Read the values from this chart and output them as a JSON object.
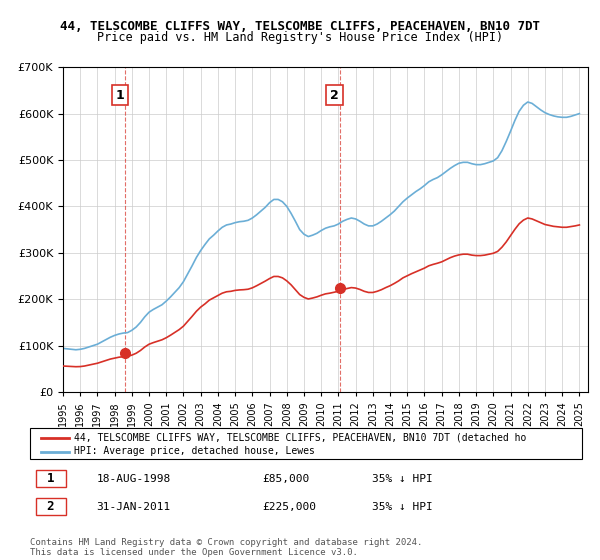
{
  "title_line1": "44, TELSCOMBE CLIFFS WAY, TELSCOMBE CLIFFS, PEACEHAVEN, BN10 7DT",
  "title_line2": "Price paid vs. HM Land Registry's House Price Index (HPI)",
  "ylabel": "",
  "xlabel": "",
  "ylim": [
    0,
    700000
  ],
  "yticks": [
    0,
    100000,
    200000,
    300000,
    400000,
    500000,
    600000,
    700000
  ],
  "ytick_labels": [
    "£0",
    "£100K",
    "£200K",
    "£300K",
    "£400K",
    "£500K",
    "£600K",
    "£700K"
  ],
  "sale1_date": 1998.62,
  "sale1_price": 85000,
  "sale1_label": "1",
  "sale2_date": 2011.08,
  "sale2_price": 225000,
  "sale2_label": "2",
  "hpi_color": "#6baed6",
  "price_color": "#d73027",
  "background_color": "#ffffff",
  "grid_color": "#cccccc",
  "legend_label1": "44, TELSCOMBE CLIFFS WAY, TELSCOMBE CLIFFS, PEACEHAVEN, BN10 7DT (detached ho",
  "legend_label2": "HPI: Average price, detached house, Lewes",
  "table_row1": [
    "1",
    "18-AUG-1998",
    "£85,000",
    "35% ↓ HPI"
  ],
  "table_row2": [
    "2",
    "31-JAN-2011",
    "£225,000",
    "35% ↓ HPI"
  ],
  "footnote": "Contains HM Land Registry data © Crown copyright and database right 2024.\nThis data is licensed under the Open Government Licence v3.0.",
  "hpi_data_x": [
    1995.0,
    1995.25,
    1995.5,
    1995.75,
    1996.0,
    1996.25,
    1996.5,
    1996.75,
    1997.0,
    1997.25,
    1997.5,
    1997.75,
    1998.0,
    1998.25,
    1998.5,
    1998.75,
    1999.0,
    1999.25,
    1999.5,
    1999.75,
    2000.0,
    2000.25,
    2000.5,
    2000.75,
    2001.0,
    2001.25,
    2001.5,
    2001.75,
    2002.0,
    2002.25,
    2002.5,
    2002.75,
    2003.0,
    2003.25,
    2003.5,
    2003.75,
    2004.0,
    2004.25,
    2004.5,
    2004.75,
    2005.0,
    2005.25,
    2005.5,
    2005.75,
    2006.0,
    2006.25,
    2006.5,
    2006.75,
    2007.0,
    2007.25,
    2007.5,
    2007.75,
    2008.0,
    2008.25,
    2008.5,
    2008.75,
    2009.0,
    2009.25,
    2009.5,
    2009.75,
    2010.0,
    2010.25,
    2010.5,
    2010.75,
    2011.0,
    2011.25,
    2011.5,
    2011.75,
    2012.0,
    2012.25,
    2012.5,
    2012.75,
    2013.0,
    2013.25,
    2013.5,
    2013.75,
    2014.0,
    2014.25,
    2014.5,
    2014.75,
    2015.0,
    2015.25,
    2015.5,
    2015.75,
    2016.0,
    2016.25,
    2016.5,
    2016.75,
    2017.0,
    2017.25,
    2017.5,
    2017.75,
    2018.0,
    2018.25,
    2018.5,
    2018.75,
    2019.0,
    2019.25,
    2019.5,
    2019.75,
    2020.0,
    2020.25,
    2020.5,
    2020.75,
    2021.0,
    2021.25,
    2021.5,
    2021.75,
    2022.0,
    2022.25,
    2022.5,
    2022.75,
    2023.0,
    2023.25,
    2023.5,
    2023.75,
    2024.0,
    2024.25,
    2024.5,
    2024.75,
    2025.0
  ],
  "hpi_data_y": [
    94000,
    93000,
    92000,
    91000,
    92000,
    94000,
    97000,
    100000,
    103000,
    108000,
    113000,
    118000,
    122000,
    125000,
    127000,
    128000,
    133000,
    140000,
    150000,
    162000,
    172000,
    178000,
    183000,
    188000,
    196000,
    205000,
    215000,
    225000,
    238000,
    255000,
    272000,
    290000,
    305000,
    318000,
    330000,
    338000,
    347000,
    355000,
    360000,
    362000,
    365000,
    367000,
    368000,
    370000,
    375000,
    382000,
    390000,
    398000,
    408000,
    415000,
    415000,
    410000,
    400000,
    385000,
    368000,
    350000,
    340000,
    335000,
    338000,
    342000,
    348000,
    353000,
    356000,
    358000,
    362000,
    368000,
    372000,
    375000,
    373000,
    368000,
    362000,
    358000,
    358000,
    362000,
    368000,
    375000,
    382000,
    390000,
    400000,
    410000,
    418000,
    425000,
    432000,
    438000,
    445000,
    453000,
    458000,
    462000,
    468000,
    475000,
    482000,
    488000,
    493000,
    495000,
    495000,
    492000,
    490000,
    490000,
    492000,
    495000,
    498000,
    505000,
    520000,
    540000,
    562000,
    585000,
    605000,
    618000,
    625000,
    622000,
    615000,
    608000,
    602000,
    598000,
    595000,
    593000,
    592000,
    592000,
    594000,
    597000,
    600000
  ],
  "price_data_x": [
    1995.0,
    1995.25,
    1995.5,
    1995.75,
    1996.0,
    1996.25,
    1996.5,
    1996.75,
    1997.0,
    1997.25,
    1997.5,
    1997.75,
    1998.0,
    1998.25,
    1998.5,
    1998.75,
    1999.0,
    1999.25,
    1999.5,
    1999.75,
    2000.0,
    2000.25,
    2000.5,
    2000.75,
    2001.0,
    2001.25,
    2001.5,
    2001.75,
    2002.0,
    2002.25,
    2002.5,
    2002.75,
    2003.0,
    2003.25,
    2003.5,
    2003.75,
    2004.0,
    2004.25,
    2004.5,
    2004.75,
    2005.0,
    2005.25,
    2005.5,
    2005.75,
    2006.0,
    2006.25,
    2006.5,
    2006.75,
    2007.0,
    2007.25,
    2007.5,
    2007.75,
    2008.0,
    2008.25,
    2008.5,
    2008.75,
    2009.0,
    2009.25,
    2009.5,
    2009.75,
    2010.0,
    2010.25,
    2010.5,
    2010.75,
    2011.0,
    2011.25,
    2011.5,
    2011.75,
    2012.0,
    2012.25,
    2012.5,
    2012.75,
    2013.0,
    2013.25,
    2013.5,
    2013.75,
    2014.0,
    2014.25,
    2014.5,
    2014.75,
    2015.0,
    2015.25,
    2015.5,
    2015.75,
    2016.0,
    2016.25,
    2016.5,
    2016.75,
    2017.0,
    2017.25,
    2017.5,
    2017.75,
    2018.0,
    2018.25,
    2018.5,
    2018.75,
    2019.0,
    2019.25,
    2019.5,
    2019.75,
    2020.0,
    2020.25,
    2020.5,
    2020.75,
    2021.0,
    2021.25,
    2021.5,
    2021.75,
    2022.0,
    2022.25,
    2022.5,
    2022.75,
    2023.0,
    2023.25,
    2023.5,
    2023.75,
    2024.0,
    2024.25,
    2024.5,
    2024.75,
    2025.0
  ],
  "price_data_y": [
    56000,
    55500,
    55000,
    54500,
    54800,
    56000,
    58000,
    60000,
    62000,
    65000,
    68000,
    71000,
    73000,
    75000,
    76000,
    77000,
    79500,
    83500,
    89500,
    97000,
    103000,
    106500,
    109500,
    112500,
    117000,
    122500,
    128500,
    134500,
    142000,
    152500,
    163000,
    174000,
    183000,
    190000,
    198000,
    203000,
    208000,
    213000,
    216000,
    217000,
    219000,
    220000,
    220500,
    221500,
    224500,
    229000,
    234000,
    239000,
    244500,
    249000,
    249000,
    246000,
    239500,
    231000,
    220500,
    210000,
    204000,
    200500,
    202500,
    205000,
    208500,
    211500,
    213000,
    215000,
    217000,
    220500,
    223000,
    225000,
    224000,
    221000,
    217000,
    214500,
    214500,
    217000,
    220500,
    225000,
    229000,
    234000,
    239500,
    246000,
    250500,
    255000,
    259000,
    263000,
    267000,
    272000,
    275000,
    277500,
    280500,
    285000,
    289500,
    293000,
    295500,
    297000,
    297000,
    295000,
    294000,
    294000,
    295000,
    297000,
    299000,
    303000,
    312000,
    323500,
    337000,
    350500,
    362500,
    370500,
    375000,
    373000,
    369000,
    365000,
    361000,
    359000,
    357000,
    356000,
    355000,
    355000,
    356500,
    358000,
    360000
  ]
}
